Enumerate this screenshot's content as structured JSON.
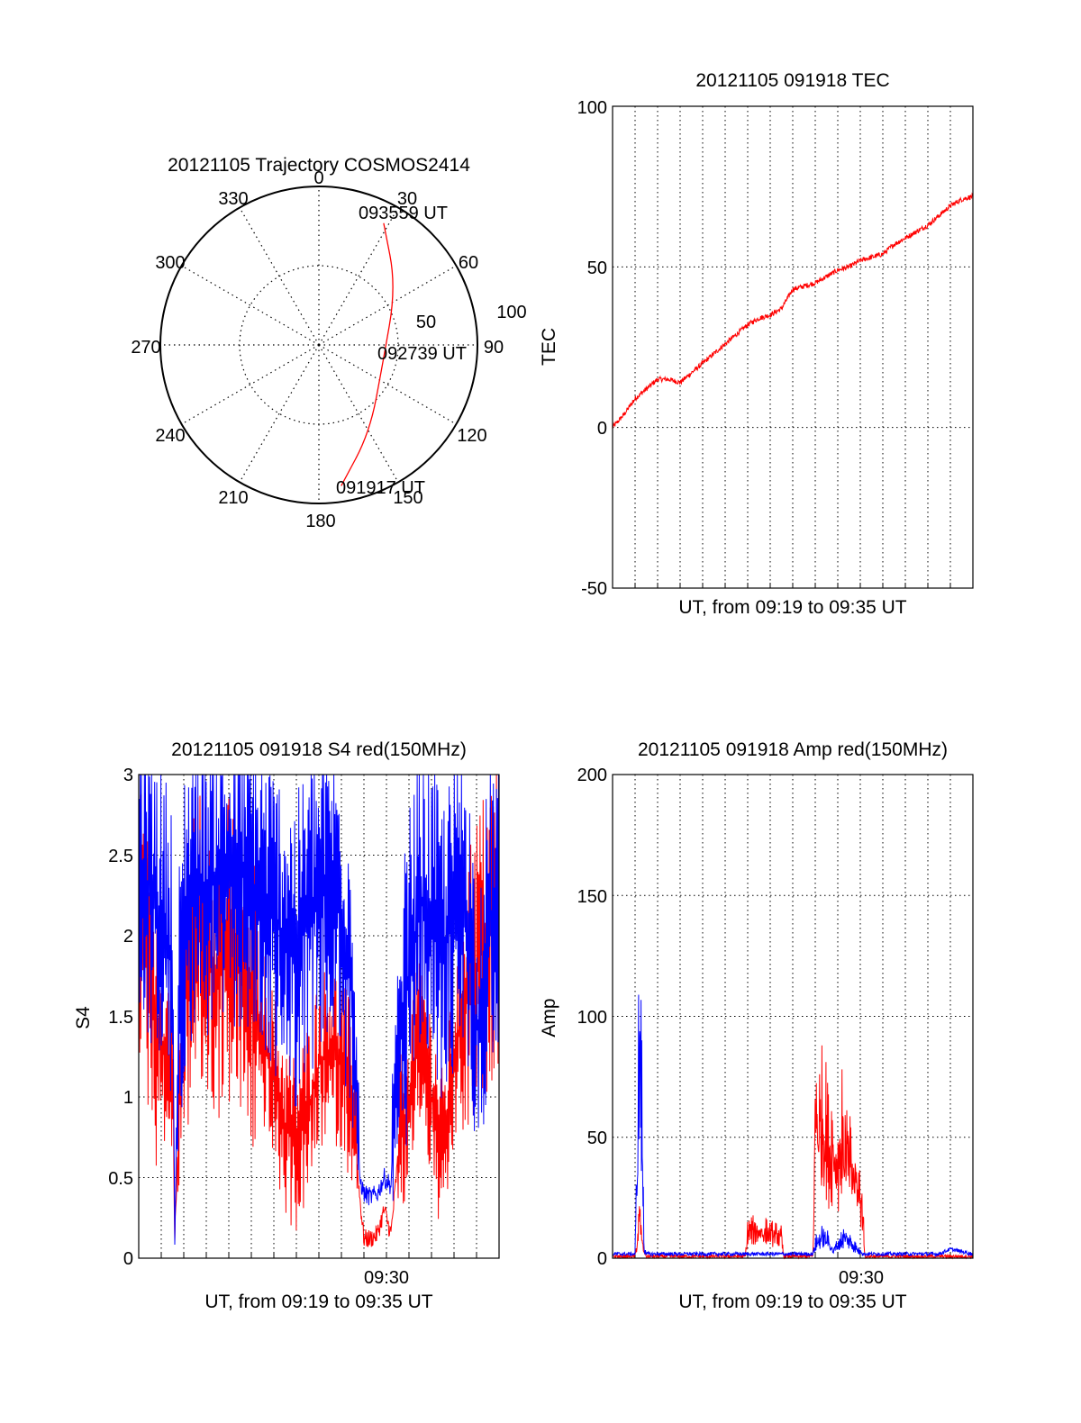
{
  "chart_data": [
    {
      "type": "polar-trajectory",
      "title": "20121105 Trajectory COSMOS2414",
      "azimuth_labels": [
        "0",
        "30",
        "60",
        "90",
        "120",
        "150",
        "180",
        "210",
        "240",
        "270",
        "300",
        "330"
      ],
      "radial_labels": [
        "50",
        "100"
      ],
      "radial_range": [
        0,
        100
      ],
      "grid": true,
      "point_labels": [
        "093559 UT",
        "092739 UT",
        "091917 UT"
      ],
      "trajectory": [
        {
          "time": "091917 UT",
          "az": 171,
          "r": 90
        },
        {
          "az": 150,
          "r": 64
        },
        {
          "time": "092739 UT",
          "az": 107,
          "r": 42
        },
        {
          "az": 53,
          "r": 61
        },
        {
          "time": "093559 UT",
          "az": 28,
          "r": 87
        }
      ],
      "colors": {
        "trajectory": "#ff0000"
      }
    },
    {
      "type": "line",
      "title": "20121105 091918 TEC",
      "xlabel": "UT, from 09:19 to 09:35 UT",
      "ylabel": "TEC",
      "ylim": [
        -50,
        100
      ],
      "yticks": [
        "-50",
        "0",
        "50",
        "100"
      ],
      "xlim": [
        0,
        16
      ],
      "grid": true,
      "series": [
        {
          "color": "#ff0000",
          "x": [
            0,
            0.5,
            1,
            1.5,
            2,
            2.5,
            3,
            3.5,
            4,
            4.5,
            5,
            5.5,
            6,
            6.5,
            7,
            7.5,
            8,
            8.5,
            9,
            9.5,
            10,
            10.5,
            11,
            11.5,
            12,
            12.5,
            13,
            13.5,
            14,
            14.5,
            15,
            15.5,
            16
          ],
          "y": [
            0,
            4,
            9,
            12,
            15,
            15,
            14,
            17,
            20,
            23,
            26,
            29,
            32,
            34,
            35,
            37,
            43,
            44,
            45,
            47,
            49,
            50,
            52,
            53,
            54,
            57,
            59,
            61,
            63,
            66,
            69,
            71,
            72
          ]
        }
      ]
    },
    {
      "type": "line",
      "title": "20121105 091918 S4 red(150MHz)",
      "xlabel": "UT, from 09:19 to 09:35 UT",
      "ylabel": "S4",
      "ylim": [
        0,
        3
      ],
      "yticks": [
        "0",
        "0.5",
        "1",
        "1.5",
        "2",
        "2.5",
        "3"
      ],
      "xlim": [
        0,
        16
      ],
      "xtick_labels": [
        {
          "x": 11,
          "label": "09:30"
        }
      ],
      "grid": true,
      "series": [
        {
          "color": "#ff0000",
          "x": [
            0,
            0.5,
            1,
            1.5,
            1.6,
            1.8,
            2,
            2.5,
            3,
            3.5,
            4,
            4.5,
            5,
            5.5,
            6,
            6.5,
            7,
            7.5,
            8,
            8.5,
            9,
            9.5,
            9.8,
            10,
            10.3,
            10.6,
            10.9,
            11.2,
            11.5,
            12,
            12.5,
            13,
            13.5,
            14,
            14.5,
            15,
            15.5,
            16
          ],
          "y": [
            2.2,
            1.8,
            1.3,
            1.2,
            0.12,
            1.0,
            1.6,
            2.0,
            1.9,
            1.8,
            1.9,
            1.8,
            1.6,
            1.4,
            1.1,
            0.8,
            0.7,
            0.9,
            1.2,
            1.3,
            1.2,
            1.0,
            0.4,
            0.12,
            0.12,
            0.15,
            0.3,
            0.15,
            0.6,
            1.0,
            1.4,
            1.0,
            0.6,
            1.2,
            1.6,
            1.8,
            2.0,
            2.2
          ]
        },
        {
          "color": "#0000ff",
          "x": [
            0,
            0.5,
            1,
            1.5,
            1.6,
            1.8,
            2,
            2.5,
            3,
            3.5,
            4,
            4.5,
            5,
            5.5,
            6,
            6.5,
            7,
            7.5,
            8,
            8.5,
            9,
            9.5,
            9.8,
            10,
            10.3,
            10.6,
            10.9,
            11.2,
            11.5,
            12,
            12.5,
            13,
            13.5,
            14,
            14.5,
            15,
            15.5,
            16
          ],
          "y": [
            2.4,
            2.3,
            2.1,
            1.9,
            0.14,
            1.5,
            2.1,
            2.4,
            2.3,
            2.4,
            2.3,
            2.4,
            2.3,
            2.2,
            2.1,
            2.0,
            1.9,
            2.1,
            2.2,
            2.3,
            2.1,
            1.7,
            0.5,
            0.4,
            0.38,
            0.4,
            0.5,
            0.45,
            1.2,
            1.8,
            2.2,
            2.1,
            1.9,
            2.1,
            2.3,
            1.4,
            2.0,
            2.3
          ]
        }
      ]
    },
    {
      "type": "line",
      "title": "20121105 091918 Amp red(150MHz)",
      "xlabel": "UT, from 09:19 to 09:35 UT",
      "ylabel": "Amp",
      "ylim": [
        0,
        200
      ],
      "yticks": [
        "0",
        "50",
        "100",
        "150",
        "200"
      ],
      "xlim": [
        0,
        16
      ],
      "xtick_labels": [
        {
          "x": 11,
          "label": "09:30"
        }
      ],
      "grid": true,
      "series": [
        {
          "color": "#ff0000",
          "x": [
            0,
            1.0,
            1.1,
            1.2,
            1.3,
            1.4,
            1.5,
            5.9,
            6.0,
            6.5,
            7.0,
            7.5,
            7.6,
            8.9,
            9.0,
            9.2,
            9.4,
            9.6,
            9.8,
            10.0,
            10.2,
            10.4,
            10.6,
            10.8,
            11.0,
            11.1,
            11.2,
            16
          ],
          "y": [
            0,
            0,
            10,
            24,
            12,
            2,
            0,
            0,
            15,
            16,
            14,
            12,
            0,
            0,
            85,
            75,
            80,
            60,
            65,
            55,
            70,
            60,
            50,
            45,
            35,
            30,
            0,
            0
          ]
        },
        {
          "color": "#0000ff",
          "x": [
            0,
            1.0,
            1.1,
            1.2,
            1.3,
            1.4,
            1.5,
            8.9,
            9.0,
            9.3,
            9.6,
            9.8,
            10.0,
            10.3,
            10.5,
            10.8,
            11.0,
            11.1,
            11.2,
            14.5,
            15.0,
            15.5,
            16
          ],
          "y": [
            1,
            1,
            60,
            130,
            80,
            5,
            1,
            1,
            8,
            12,
            10,
            4,
            8,
            12,
            10,
            6,
            3,
            1,
            1,
            1,
            3,
            2,
            1
          ]
        }
      ]
    }
  ]
}
